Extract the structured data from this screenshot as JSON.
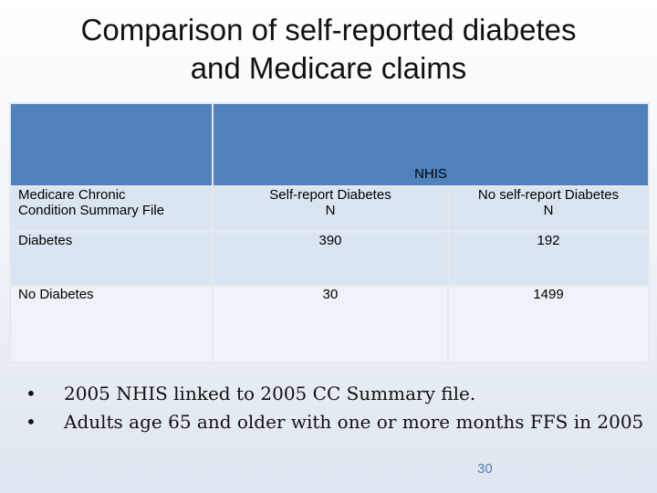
{
  "slide": {
    "title_line1": "Comparison of self-reported diabetes",
    "title_line2": "and Medicare claims",
    "page_number": "30"
  },
  "table": {
    "group_header": "NHIS",
    "row_header_title_line1": "Medicare Chronic",
    "row_header_title_line2": "Condition Summary File",
    "col1_line1": "Self-report Diabetes",
    "col1_line2": "N",
    "col2_line1": "No self-report Diabetes",
    "col2_line2": "N",
    "rows": [
      {
        "label": "Diabetes",
        "self_report": "390",
        "no_self_report": "192"
      },
      {
        "label": "No Diabetes",
        "self_report": "30",
        "no_self_report": "1499"
      }
    ]
  },
  "bullets": {
    "marker": "•",
    "items": [
      "2005 NHIS linked to 2005 CC Summary file.",
      "Adults age 65 and older with one or more months FFS in 2005"
    ]
  }
}
